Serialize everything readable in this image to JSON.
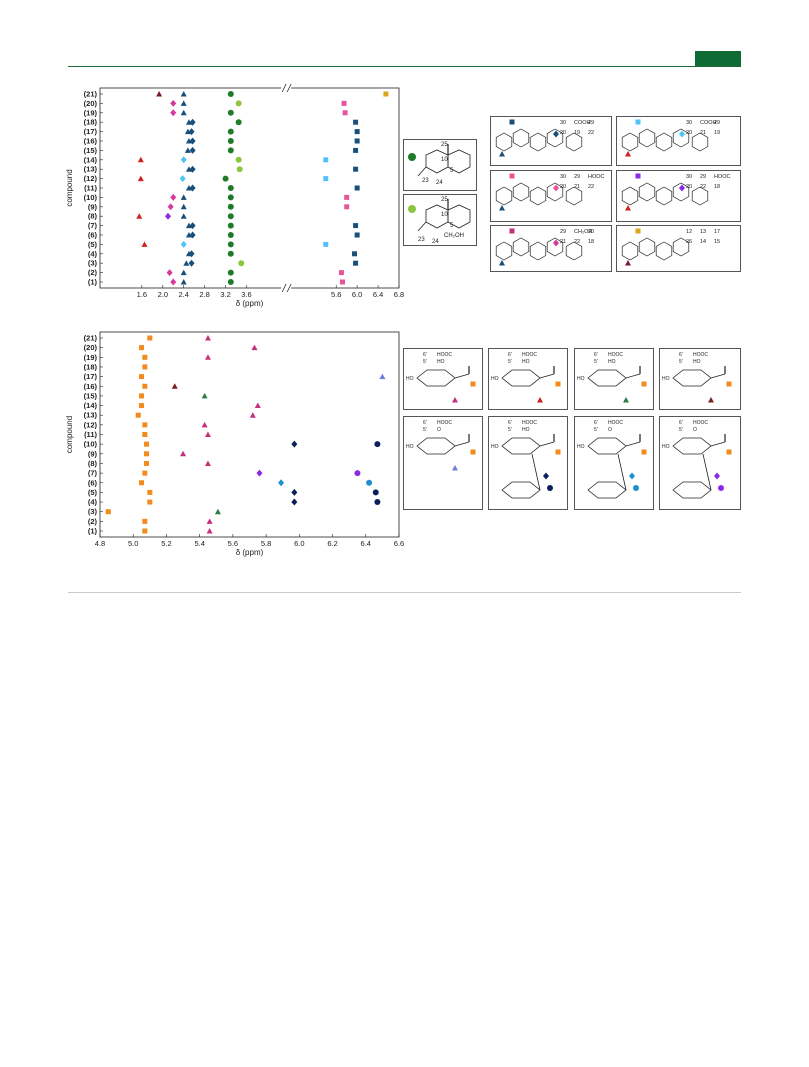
{
  "colors": {
    "header_green": "#0d6b33",
    "dark_red": "#7a1c2a",
    "magenta": "#d63a9b",
    "navy": "#1a4f7a",
    "light_blue": "#4fc3f7",
    "green": "#1f7a2a",
    "lime": "#8cc63f",
    "pink": "#e8559a",
    "gold": "#d9a520",
    "red": "#d21f1f",
    "purple": "#8b2be2",
    "orange": "#f28a1e",
    "crimson": "#c4307a",
    "dark_navy": "#0b1f5c",
    "teal": "#1c8fd0",
    "periwinkle": "#6b7fe0",
    "forest": "#2e7d45",
    "maroon": "#7a2020",
    "violet": "#8a2be2"
  },
  "chart_data": [
    {
      "type": "scatter",
      "xlabel": "δ (ppm)",
      "ylabel": "compound",
      "xlim": [
        0.8,
        6.8
      ],
      "axis_break": [
        4.3,
        4.7
      ],
      "xticks": [
        "1.6",
        "2.0",
        "2.4",
        "2.8",
        "3.2",
        "3.6",
        "5.6",
        "6.0",
        "6.4",
        "6.8"
      ],
      "categories": [
        "(1)",
        "(2)",
        "(3)",
        "(4)",
        "(5)",
        "(6)",
        "(7)",
        "(8)",
        "(9)",
        "(10)",
        "(11)",
        "(12)",
        "(13)",
        "(14)",
        "(15)",
        "(16)",
        "(17)",
        "(18)",
        "(19)",
        "(20)",
        "(21)"
      ],
      "series": [
        {
          "marker": "triangle",
          "color": "dark_red",
          "points": [
            [
              1.93,
              "(21)"
            ]
          ]
        },
        {
          "marker": "triangle",
          "color": "red",
          "points": [
            [
              1.58,
              "(14)"
            ],
            [
              1.58,
              "(12)"
            ],
            [
              1.55,
              "(8)"
            ],
            [
              1.65,
              "(5)"
            ]
          ]
        },
        {
          "marker": "diamond",
          "color": "magenta",
          "points": [
            [
              2.2,
              "(20)"
            ],
            [
              2.2,
              "(19)"
            ],
            [
              2.2,
              "(10)"
            ],
            [
              2.15,
              "(9)"
            ],
            [
              2.2,
              "(1)"
            ],
            [
              2.13,
              "(2)"
            ]
          ]
        },
        {
          "marker": "diamond",
          "color": "purple",
          "points": [
            [
              2.1,
              "(8)"
            ]
          ]
        },
        {
          "marker": "triangle",
          "color": "navy",
          "points": [
            [
              2.4,
              "(21)"
            ],
            [
              2.4,
              "(20)"
            ],
            [
              2.4,
              "(19)"
            ],
            [
              2.5,
              "(18)"
            ],
            [
              2.48,
              "(17)"
            ],
            [
              2.5,
              "(16)"
            ],
            [
              2.48,
              "(15)"
            ],
            [
              2.5,
              "(13)"
            ],
            [
              2.5,
              "(11)"
            ],
            [
              2.4,
              "(10)"
            ],
            [
              2.4,
              "(9)"
            ],
            [
              2.4,
              "(8)"
            ],
            [
              2.5,
              "(7)"
            ],
            [
              2.5,
              "(6)"
            ],
            [
              2.5,
              "(4)"
            ],
            [
              2.45,
              "(3)"
            ],
            [
              2.4,
              "(2)"
            ],
            [
              2.4,
              "(1)"
            ]
          ]
        },
        {
          "marker": "diamond",
          "color": "navy",
          "points": [
            [
              2.57,
              "(18)"
            ],
            [
              2.55,
              "(17)"
            ],
            [
              2.57,
              "(16)"
            ],
            [
              2.57,
              "(15)"
            ],
            [
              2.57,
              "(13)"
            ],
            [
              2.57,
              "(11)"
            ],
            [
              2.57,
              "(7)"
            ],
            [
              2.57,
              "(6)"
            ],
            [
              2.55,
              "(4)"
            ],
            [
              2.55,
              "(3)"
            ]
          ]
        },
        {
          "marker": "diamond",
          "color": "light_blue",
          "points": [
            [
              2.4,
              "(14)"
            ],
            [
              2.38,
              "(12)"
            ],
            [
              2.4,
              "(5)"
            ]
          ]
        },
        {
          "marker": "circle",
          "color": "green",
          "points": [
            [
              3.3,
              "(21)"
            ],
            [
              3.3,
              "(19)"
            ],
            [
              3.45,
              "(18)"
            ],
            [
              3.3,
              "(17)"
            ],
            [
              3.3,
              "(16)"
            ],
            [
              3.3,
              "(15)"
            ],
            [
              3.3,
              "(11)"
            ],
            [
              3.3,
              "(10)"
            ],
            [
              3.3,
              "(9)"
            ],
            [
              3.3,
              "(8)"
            ],
            [
              3.3,
              "(7)"
            ],
            [
              3.3,
              "(6)"
            ],
            [
              3.3,
              "(5)"
            ],
            [
              3.3,
              "(4)"
            ],
            [
              3.3,
              "(2)"
            ],
            [
              3.3,
              "(1)"
            ],
            [
              3.2,
              "(12)"
            ]
          ]
        },
        {
          "marker": "circle",
          "color": "lime",
          "points": [
            [
              3.45,
              "(20)"
            ],
            [
              3.45,
              "(14)"
            ],
            [
              3.47,
              "(13)"
            ],
            [
              3.5,
              "(3)"
            ]
          ]
        },
        {
          "marker": "square",
          "color": "pink",
          "points": [
            [
              5.75,
              "(20)"
            ],
            [
              5.77,
              "(19)"
            ],
            [
              5.8,
              "(10)"
            ],
            [
              5.8,
              "(9)"
            ],
            [
              5.7,
              "(2)"
            ],
            [
              5.72,
              "(1)"
            ]
          ]
        },
        {
          "marker": "square",
          "color": "light_blue",
          "points": [
            [
              5.4,
              "(14)"
            ],
            [
              5.4,
              "(12)"
            ],
            [
              5.4,
              "(5)"
            ]
          ]
        },
        {
          "marker": "square",
          "color": "navy",
          "points": [
            [
              5.97,
              "(18)"
            ],
            [
              6.0,
              "(17)"
            ],
            [
              6.0,
              "(16)"
            ],
            [
              5.97,
              "(15)"
            ],
            [
              5.97,
              "(13)"
            ],
            [
              6.0,
              "(11)"
            ],
            [
              5.97,
              "(7)"
            ],
            [
              6.0,
              "(6)"
            ],
            [
              5.95,
              "(4)"
            ],
            [
              5.97,
              "(3)"
            ]
          ]
        },
        {
          "marker": "square",
          "color": "gold",
          "points": [
            [
              6.55,
              "(21)"
            ]
          ]
        }
      ]
    },
    {
      "type": "scatter",
      "xlabel": "δ (ppm)",
      "ylabel": "compound",
      "xlim": [
        4.8,
        6.6
      ],
      "xticks": [
        "4.8",
        "5.0",
        "5.2",
        "5.4",
        "5.6",
        "5.8",
        "6.0",
        "6.2",
        "6.4",
        "6.6"
      ],
      "categories": [
        "(1)",
        "(2)",
        "(3)",
        "(4)",
        "(5)",
        "(6)",
        "(7)",
        "(8)",
        "(9)",
        "(10)",
        "(11)",
        "(12)",
        "(13)",
        "(14)",
        "(15)",
        "(16)",
        "(17)",
        "(18)",
        "(19)",
        "(20)",
        "(21)"
      ],
      "series": [
        {
          "marker": "square",
          "color": "orange",
          "points": [
            [
              5.1,
              "(21)"
            ],
            [
              5.05,
              "(20)"
            ],
            [
              5.07,
              "(19)"
            ],
            [
              5.07,
              "(18)"
            ],
            [
              5.05,
              "(17)"
            ],
            [
              5.07,
              "(16)"
            ],
            [
              5.05,
              "(15)"
            ],
            [
              5.05,
              "(14)"
            ],
            [
              5.03,
              "(13)"
            ],
            [
              5.07,
              "(12)"
            ],
            [
              5.07,
              "(11)"
            ],
            [
              5.08,
              "(10)"
            ],
            [
              5.08,
              "(9)"
            ],
            [
              5.08,
              "(8)"
            ],
            [
              5.07,
              "(7)"
            ],
            [
              5.05,
              "(6)"
            ],
            [
              5.1,
              "(5)"
            ],
            [
              5.1,
              "(4)"
            ],
            [
              4.85,
              "(3)"
            ],
            [
              5.07,
              "(2)"
            ],
            [
              5.07,
              "(1)"
            ]
          ]
        },
        {
          "marker": "triangle",
          "color": "crimson",
          "points": [
            [
              5.45,
              "(21)"
            ],
            [
              5.45,
              "(19)"
            ],
            [
              5.73,
              "(20)"
            ],
            [
              5.75,
              "(14)"
            ],
            [
              5.72,
              "(13)"
            ],
            [
              5.43,
              "(12)"
            ],
            [
              5.45,
              "(11)"
            ],
            [
              5.3,
              "(9)"
            ],
            [
              5.45,
              "(8)"
            ],
            [
              5.46,
              "(2)"
            ],
            [
              5.46,
              "(1)"
            ]
          ]
        },
        {
          "marker": "triangle",
          "color": "periwinkle",
          "points": [
            [
              6.5,
              "(17)"
            ]
          ]
        },
        {
          "marker": "triangle",
          "color": "maroon",
          "points": [
            [
              5.25,
              "(16)"
            ]
          ]
        },
        {
          "marker": "triangle",
          "color": "forest",
          "points": [
            [
              5.43,
              "(15)"
            ],
            [
              5.51,
              "(3)"
            ]
          ]
        },
        {
          "marker": "diamond",
          "color": "dark_navy",
          "points": [
            [
              5.97,
              "(10)"
            ],
            [
              5.97,
              "(5)"
            ],
            [
              5.97,
              "(4)"
            ]
          ]
        },
        {
          "marker": "circle",
          "color": "dark_navy",
          "points": [
            [
              6.47,
              "(10)"
            ],
            [
              6.46,
              "(5)"
            ],
            [
              6.47,
              "(4)"
            ]
          ]
        },
        {
          "marker": "diamond",
          "color": "violet",
          "points": [
            [
              5.76,
              "(7)"
            ]
          ]
        },
        {
          "marker": "circle",
          "color": "violet",
          "points": [
            [
              6.35,
              "(7)"
            ]
          ]
        },
        {
          "marker": "diamond",
          "color": "teal",
          "points": [
            [
              5.89,
              "(6)"
            ]
          ]
        },
        {
          "marker": "circle",
          "color": "teal",
          "points": [
            [
              6.42,
              "(6)"
            ]
          ]
        }
      ]
    }
  ],
  "structures_top": {
    "ringA_left": {
      "labels": [
        "25",
        "10",
        "5",
        "23",
        "24",
        "HO"
      ]
    },
    "ringA_left2": {
      "labels": [
        "25",
        "10",
        "5",
        "23",
        "24",
        "CH₂OH"
      ]
    },
    "struct1": {
      "labels": [
        "30",
        "COOH",
        "29",
        "20",
        "19",
        "22",
        "18",
        "12",
        "13",
        "17",
        "26",
        "14",
        "15",
        "27",
        "28",
        "11",
        "9",
        "8",
        "O"
      ]
    },
    "struct2": {
      "labels": [
        "30",
        "COOH",
        "29",
        "20",
        "21",
        "19",
        "22",
        "18",
        "12",
        "13",
        "17",
        "26",
        "14",
        "15",
        "27",
        "28",
        "11",
        "9",
        "8",
        "H"
      ]
    },
    "struct3": {
      "labels": [
        "30",
        "29",
        "HOOC",
        "20",
        "21",
        "22",
        "18",
        "12",
        "13",
        "17",
        "26",
        "14",
        "15",
        "27",
        "28",
        "11",
        "9",
        "8",
        "O"
      ]
    },
    "struct4": {
      "labels": [
        "30",
        "29",
        "HOOC",
        "20",
        "22",
        "18",
        "12",
        "13",
        "17",
        "26",
        "14",
        "15",
        "27",
        "28",
        "11",
        "9",
        "8",
        "H"
      ]
    },
    "struct5": {
      "labels": [
        "29",
        "CH₂OR",
        "20",
        "21",
        "22",
        "18",
        "12",
        "13",
        "17",
        "26",
        "14",
        "15",
        "27",
        "28",
        "11",
        "9",
        "8",
        "O",
        "R = H",
        "R = COH",
        "31"
      ]
    },
    "struct6": {
      "labels": [
        "12",
        "13",
        "17",
        "26",
        "14",
        "15",
        "27",
        "28",
        "11",
        "9",
        "8"
      ]
    }
  },
  "structures_bottom": {
    "sugar_labels": [
      "6'",
      "HOOC",
      "5'",
      "HO",
      "4'",
      "3'",
      "2'",
      "1'",
      "O",
      "OH",
      "OH",
      "HO"
    ],
    "sugar_labels_b": [
      "6'",
      "HOOC",
      "5'",
      "HO",
      "4'",
      "3'",
      "2'",
      "1'",
      "O",
      "HO",
      "OH",
      "6'' COOH",
      "5''",
      "4''",
      "3''",
      "2''",
      "1''",
      "O",
      "OH",
      "HO"
    ],
    "sugar_labels_c": [
      "6'",
      "HOOC",
      "5'",
      "O",
      "4'",
      "3'",
      "2'",
      "1'",
      "O",
      "HO",
      "OH",
      "6''",
      "5''",
      "4''",
      "3''",
      "2''",
      "1''",
      "O",
      "OH",
      "HO"
    ],
    "sugar_labels_d": [
      "6'",
      "HOOC",
      "5'",
      "O",
      "4'",
      "3'",
      "2'",
      "1'",
      "O",
      "OH",
      "HO",
      "6''",
      "5''",
      "4''",
      "3''",
      "2''",
      "1''",
      "O",
      "OH",
      "HO"
    ],
    "sugar_labels_e": [
      "6'",
      "HOOC",
      "5'",
      "O",
      "4'",
      "3'",
      "2'",
      "1'",
      "O",
      "OH",
      "HO",
      "6''",
      "5''",
      "4''",
      "3''",
      "2''",
      "1''",
      "O",
      "OH",
      "HO"
    ],
    "sugar_labels_f": [
      "6'",
      "HOOC",
      "5'",
      "O",
      "4'",
      "3'",
      "2'",
      "1'",
      "O",
      "OH",
      "CH₂OH",
      "6''",
      "5''",
      "4''",
      "3''",
      "2''",
      "1''",
      "O",
      "OH",
      "HO"
    ],
    "sugar_labels_g": [
      "6'",
      "HOOC",
      "5'",
      "O",
      "4'",
      "3'",
      "2'",
      "1'",
      "O",
      "HO",
      "OH",
      "5''",
      "4''",
      "3''",
      "2''",
      "1''",
      "O",
      "OH",
      "HO"
    ]
  }
}
